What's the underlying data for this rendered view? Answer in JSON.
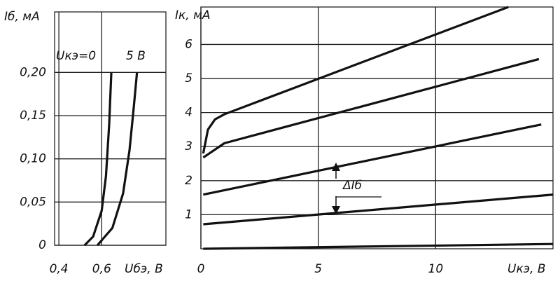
{
  "chart_data": [
    {
      "type": "line",
      "title": "Iб, мА",
      "x_label": "Uбэ, В",
      "xlim": [
        0.38,
        0.9
      ],
      "xticks": [
        {
          "value": 0.4,
          "label": "0,4"
        },
        {
          "value": 0.6,
          "label": "0,6"
        }
      ],
      "ylim": [
        0,
        0.27
      ],
      "yticks": [
        0,
        {
          "value": 0.05,
          "label": "0,05"
        },
        {
          "value": 0.1,
          "label": "0,10"
        },
        {
          "value": 0.15,
          "label": "0,15"
        },
        {
          "value": 0.2,
          "label": "0,20"
        }
      ],
      "grid": true,
      "annotations": [
        "Uкэ=0",
        "5 В"
      ],
      "series": [
        {
          "color": "#111111",
          "x": [
            0.52,
            0.56,
            0.6,
            0.62,
            0.635,
            0.645
          ],
          "values": [
            0,
            0.01,
            0.04,
            0.08,
            0.14,
            0.2
          ]
        },
        {
          "color": "#111111",
          "x": [
            0.58,
            0.65,
            0.7,
            0.73,
            0.75,
            0.765
          ],
          "values": [
            0,
            0.02,
            0.06,
            0.11,
            0.16,
            0.2
          ]
        }
      ]
    },
    {
      "type": "line",
      "title": "Iк, мА",
      "x_label": "Uкэ, В",
      "xlim": [
        0,
        15
      ],
      "xticks": [
        0,
        5,
        10
      ],
      "ylim": [
        0,
        7.1
      ],
      "yticks": [
        1,
        2,
        3,
        4,
        5,
        6
      ],
      "grid": true,
      "annotations": [
        "ΔIб"
      ],
      "series": [
        {
          "color": "#111111",
          "x": [
            0.1,
            0.3,
            0.6,
            1,
            13.1
          ],
          "values": [
            2.8,
            3.5,
            3.8,
            3.95,
            7.1
          ]
        },
        {
          "color": "#111111",
          "x": [
            0.1,
            1,
            14.4
          ],
          "values": [
            2.68,
            3.1,
            5.57
          ]
        },
        {
          "color": "#111111",
          "x": [
            0.1,
            14.5
          ],
          "values": [
            1.59,
            3.65
          ]
        },
        {
          "color": "#111111",
          "x": [
            0.1,
            15
          ],
          "values": [
            0.72,
            1.59
          ]
        },
        {
          "color": "#111111",
          "x": [
            0.1,
            15
          ],
          "values": [
            0,
            0.14
          ]
        }
      ]
    }
  ]
}
